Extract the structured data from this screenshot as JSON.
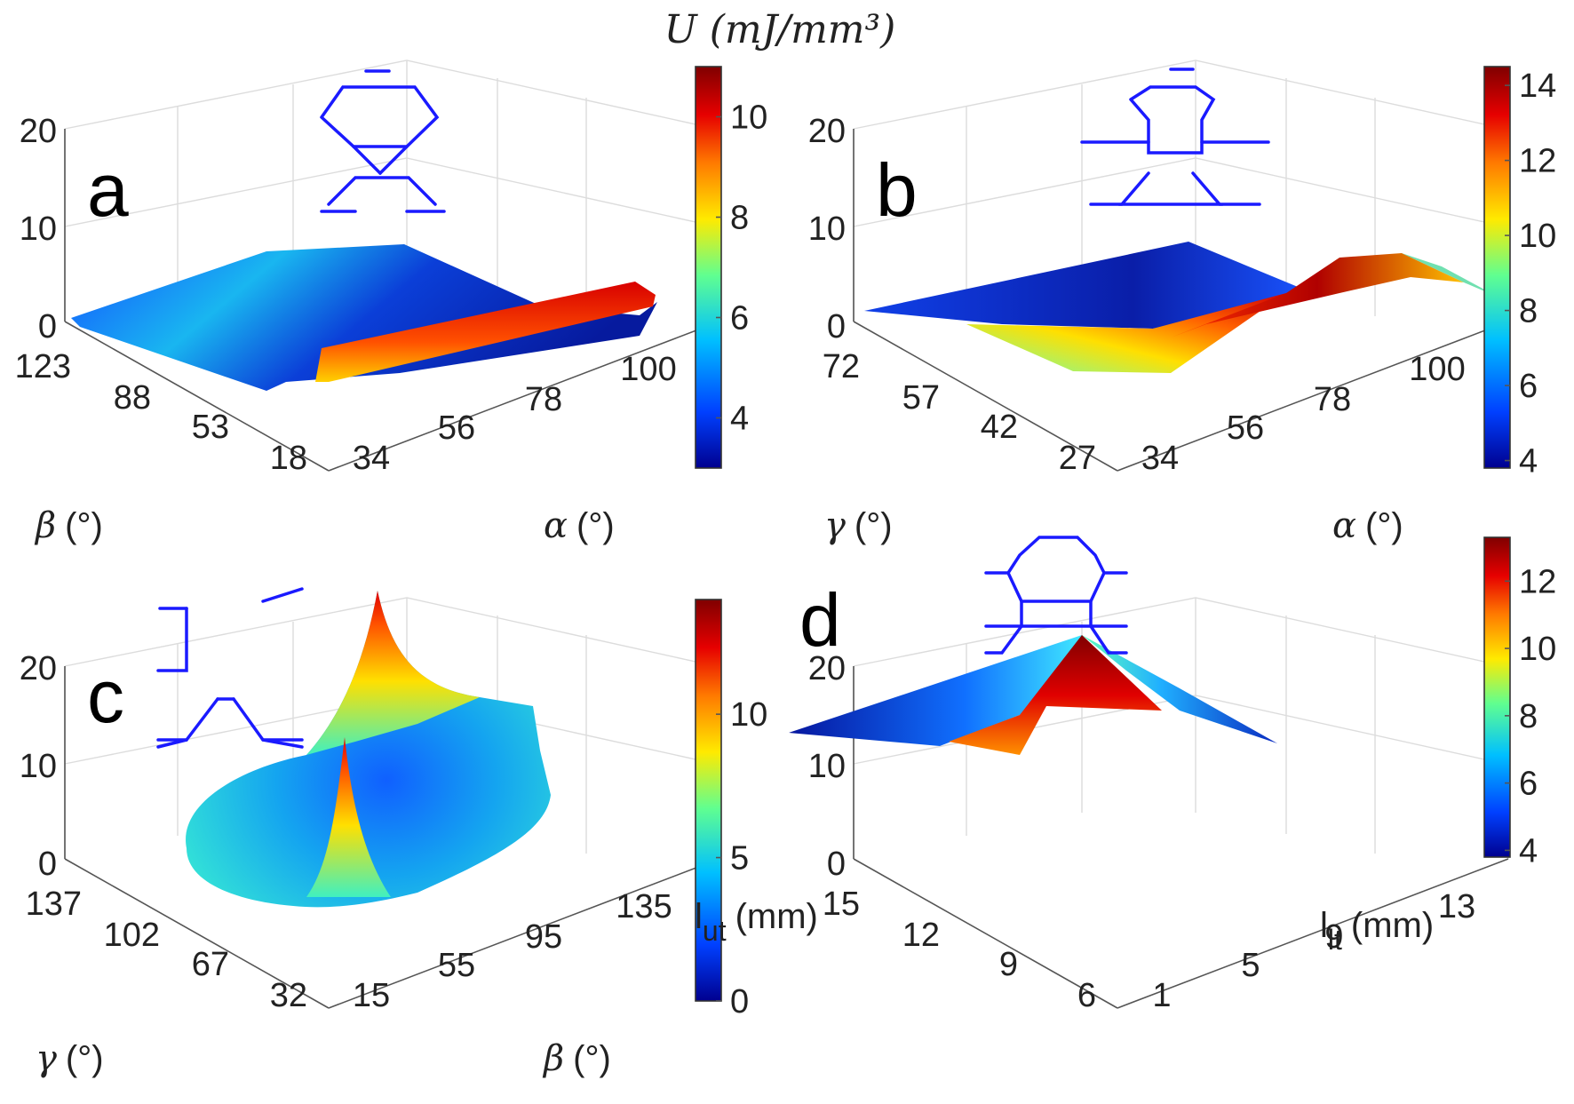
{
  "figure_title": "U (mJ/mm³)",
  "colormap": [
    "#00008f",
    "#0050ff",
    "#00c8ff",
    "#50ff90",
    "#ffe400",
    "#ff6a00",
    "#df0000",
    "#800000"
  ],
  "chart_data": [
    {
      "type": "surface",
      "panel": "a",
      "zlabel": "",
      "zticks": [
        0,
        10,
        20
      ],
      "zlim": [
        0,
        20
      ],
      "x_axis": {
        "symbol": "α",
        "unit": "(°)",
        "ticks": [
          34,
          56,
          78,
          100
        ]
      },
      "y_axis": {
        "symbol": "β",
        "unit": "(°)",
        "ticks": [
          123,
          88,
          53,
          18
        ]
      },
      "colorbar": {
        "ticks": [
          4,
          6,
          8,
          10
        ],
        "range": [
          3,
          11
        ]
      },
      "surface_value_range": [
        3,
        11
      ]
    },
    {
      "type": "surface",
      "panel": "b",
      "zticks": [
        0,
        10,
        20
      ],
      "zlim": [
        0,
        20
      ],
      "x_axis": {
        "symbol": "α",
        "unit": "(°)",
        "ticks": [
          34,
          56,
          78,
          100
        ]
      },
      "y_axis": {
        "symbol": "γ",
        "unit": "(°)",
        "ticks": [
          72,
          57,
          42,
          27
        ]
      },
      "colorbar": {
        "ticks": [
          4,
          6,
          8,
          10,
          12,
          14
        ],
        "range": [
          3.8,
          14.5
        ]
      },
      "surface_value_range": [
        3.8,
        14.5
      ]
    },
    {
      "type": "surface",
      "panel": "c",
      "zticks": [
        0,
        10,
        20
      ],
      "zlim": [
        0,
        20
      ],
      "x_axis": {
        "symbol": "β",
        "unit": "(°)",
        "ticks": [
          15,
          55,
          95,
          135
        ]
      },
      "y_axis": {
        "symbol": "γ",
        "unit": "(°)",
        "ticks": [
          137,
          102,
          67,
          32
        ]
      },
      "colorbar": {
        "ticks": [
          0,
          5,
          10
        ],
        "range": [
          0,
          14
        ]
      },
      "surface_value_range": [
        0,
        20
      ]
    },
    {
      "type": "surface",
      "panel": "d",
      "zticks": [
        0,
        10,
        20
      ],
      "zlim": [
        0,
        20
      ],
      "x_axis": {
        "symbol": "l",
        "sub": "lt",
        "unit": "(mm)",
        "ticks": [
          1,
          5,
          9,
          13
        ]
      },
      "y_axis": {
        "symbol": "l",
        "sub": "ut",
        "unit": "(mm)",
        "ticks": [
          15,
          12,
          9,
          6
        ]
      },
      "colorbar": {
        "ticks": [
          4,
          6,
          8,
          10,
          12
        ],
        "range": [
          3.8,
          13.3
        ]
      },
      "surface_value_range": [
        3.8,
        13.3
      ]
    }
  ]
}
